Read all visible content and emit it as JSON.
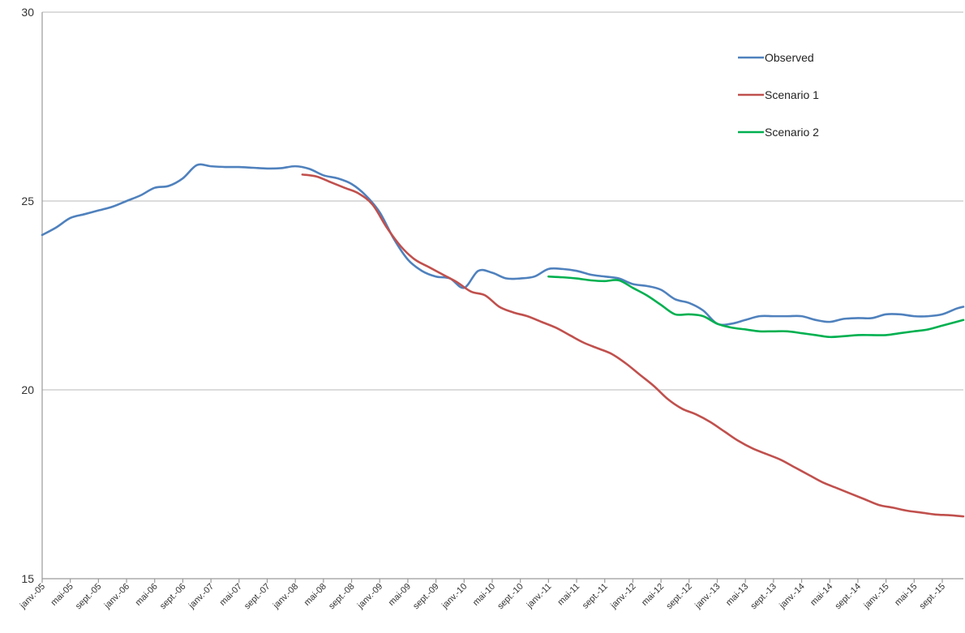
{
  "chart_data": {
    "type": "line",
    "title": "",
    "xlabel": "",
    "ylabel": "",
    "ylim": [
      15,
      30
    ],
    "yticks": [
      15,
      20,
      25,
      30
    ],
    "grid": "horizontal",
    "legend_position": "top-right",
    "x_labels": [
      "janv.-05",
      "mai-05",
      "sept.-05",
      "janv.-06",
      "mai-06",
      "sept.-06",
      "janv.-07",
      "mai-07",
      "sept.-07",
      "janv.-08",
      "mai-08",
      "sept.-08",
      "janv.-09",
      "mai-09",
      "sept.-09",
      "janv.-10",
      "mai-10",
      "sept.-10",
      "janv.-11",
      "mai-11",
      "sept.-11",
      "janv.-12",
      "mai-12",
      "sept.-12",
      "janv.-13",
      "mai-13",
      "sept.-13",
      "janv.-14",
      "mai-14",
      "sept.-14",
      "janv.-15",
      "mai-15",
      "sept.-15"
    ],
    "x_start_label": "janv.-05",
    "x_end_label": "déc.-15",
    "series": [
      {
        "name": "Observed",
        "color": "#4f81bd",
        "points": [
          [
            "janv.-05",
            24.1
          ],
          [
            "mars-05",
            24.3
          ],
          [
            "mai-05",
            24.55
          ],
          [
            "juil.-05",
            24.65
          ],
          [
            "sept.-05",
            24.75
          ],
          [
            "nov.-05",
            24.85
          ],
          [
            "janv.-06",
            25.0
          ],
          [
            "mars-06",
            25.15
          ],
          [
            "mai-06",
            25.35
          ],
          [
            "juil.-06",
            25.4
          ],
          [
            "sept.-06",
            25.6
          ],
          [
            "nov.-06",
            25.95
          ],
          [
            "janv.-07",
            25.92
          ],
          [
            "mars-07",
            25.9
          ],
          [
            "mai-07",
            25.9
          ],
          [
            "juil.-07",
            25.88
          ],
          [
            "sept.-07",
            25.86
          ],
          [
            "nov.-07",
            25.87
          ],
          [
            "janv.-08",
            25.92
          ],
          [
            "mars-08",
            25.85
          ],
          [
            "mai-08",
            25.68
          ],
          [
            "juil.-08",
            25.6
          ],
          [
            "sept.-08",
            25.45
          ],
          [
            "nov.-08",
            25.15
          ],
          [
            "janv.-09",
            24.7
          ],
          [
            "mars-09",
            24.0
          ],
          [
            "mai-09",
            23.45
          ],
          [
            "juil.-09",
            23.15
          ],
          [
            "sept.-09",
            23.0
          ],
          [
            "nov.-09",
            22.95
          ],
          [
            "janv.-10",
            22.7
          ],
          [
            "mars-10",
            23.15
          ],
          [
            "mai-10",
            23.1
          ],
          [
            "juil.-10",
            22.95
          ],
          [
            "sept.-10",
            22.95
          ],
          [
            "nov.-10",
            23.0
          ],
          [
            "janv.-11",
            23.2
          ],
          [
            "mars-11",
            23.2
          ],
          [
            "mai-11",
            23.15
          ],
          [
            "juil.-11",
            23.05
          ],
          [
            "sept.-11",
            23.0
          ],
          [
            "nov.-11",
            22.95
          ],
          [
            "janv.-12",
            22.8
          ],
          [
            "mars-12",
            22.75
          ],
          [
            "mai-12",
            22.65
          ],
          [
            "juil.-12",
            22.4
          ],
          [
            "sept.-12",
            22.3
          ],
          [
            "nov.-12",
            22.1
          ],
          [
            "janv.-13",
            21.75
          ],
          [
            "mars-13",
            21.75
          ],
          [
            "mai-13",
            21.85
          ],
          [
            "juil.-13",
            21.95
          ],
          [
            "sept.-13",
            21.95
          ],
          [
            "nov.-13",
            21.95
          ],
          [
            "janv.-14",
            21.95
          ],
          [
            "mars-14",
            21.85
          ],
          [
            "mai-14",
            21.8
          ],
          [
            "juil.-14",
            21.88
          ],
          [
            "sept.-14",
            21.9
          ],
          [
            "nov.-14",
            21.9
          ],
          [
            "janv.-15",
            22.0
          ],
          [
            "mars-15",
            22.0
          ],
          [
            "mai-15",
            21.95
          ],
          [
            "juil.-15",
            21.95
          ],
          [
            "sept.-15",
            22.0
          ],
          [
            "nov.-15",
            22.15
          ],
          [
            "déc.-15",
            22.2
          ]
        ]
      },
      {
        "name": "Scenario 1",
        "color": "#c0504d",
        "points": [
          [
            "févr.-08",
            25.7
          ],
          [
            "avr.-08",
            25.65
          ],
          [
            "juin-08",
            25.5
          ],
          [
            "août-08",
            25.35
          ],
          [
            "oct.-08",
            25.2
          ],
          [
            "déc.-08",
            24.9
          ],
          [
            "févr.-09",
            24.3
          ],
          [
            "avr.-09",
            23.8
          ],
          [
            "juin-09",
            23.45
          ],
          [
            "août-09",
            23.25
          ],
          [
            "oct.-09",
            23.05
          ],
          [
            "déc.-09",
            22.85
          ],
          [
            "févr.-10",
            22.6
          ],
          [
            "avr.-10",
            22.5
          ],
          [
            "juin-10",
            22.2
          ],
          [
            "août-10",
            22.05
          ],
          [
            "oct.-10",
            21.95
          ],
          [
            "déc.-10",
            21.8
          ],
          [
            "févr.-11",
            21.65
          ],
          [
            "avr.-11",
            21.45
          ],
          [
            "juin-11",
            21.25
          ],
          [
            "août-11",
            21.1
          ],
          [
            "oct.-11",
            20.95
          ],
          [
            "déc.-11",
            20.7
          ],
          [
            "févr.-12",
            20.4
          ],
          [
            "avr.-12",
            20.1
          ],
          [
            "juin-12",
            19.75
          ],
          [
            "août-12",
            19.5
          ],
          [
            "oct.-12",
            19.35
          ],
          [
            "déc.-12",
            19.15
          ],
          [
            "févr.-13",
            18.9
          ],
          [
            "avr.-13",
            18.65
          ],
          [
            "juin-13",
            18.45
          ],
          [
            "août-13",
            18.3
          ],
          [
            "oct.-13",
            18.15
          ],
          [
            "déc.-13",
            17.95
          ],
          [
            "févr.-14",
            17.75
          ],
          [
            "avr.-14",
            17.55
          ],
          [
            "juin-14",
            17.4
          ],
          [
            "août-14",
            17.25
          ],
          [
            "oct.-14",
            17.1
          ],
          [
            "déc.-14",
            16.95
          ],
          [
            "févr.-15",
            16.88
          ],
          [
            "avr.-15",
            16.8
          ],
          [
            "juin-15",
            16.75
          ],
          [
            "août-15",
            16.7
          ],
          [
            "oct.-15",
            16.68
          ],
          [
            "déc.-15",
            16.65
          ]
        ]
      },
      {
        "name": "Scenario 2",
        "color": "#00b050",
        "points": [
          [
            "janv.-11",
            23.0
          ],
          [
            "mars-11",
            22.98
          ],
          [
            "mai-11",
            22.95
          ],
          [
            "juil.-11",
            22.9
          ],
          [
            "sept.-11",
            22.88
          ],
          [
            "nov.-11",
            22.9
          ],
          [
            "janv.-12",
            22.7
          ],
          [
            "mars-12",
            22.5
          ],
          [
            "mai-12",
            22.25
          ],
          [
            "juil.-12",
            22.0
          ],
          [
            "sept.-12",
            22.0
          ],
          [
            "nov.-12",
            21.95
          ],
          [
            "janv.-13",
            21.75
          ],
          [
            "mars-13",
            21.65
          ],
          [
            "mai-13",
            21.6
          ],
          [
            "juil.-13",
            21.55
          ],
          [
            "sept.-13",
            21.55
          ],
          [
            "nov.-13",
            21.55
          ],
          [
            "janv.-14",
            21.5
          ],
          [
            "mars-14",
            21.45
          ],
          [
            "mai-14",
            21.4
          ],
          [
            "juil.-14",
            21.42
          ],
          [
            "sept.-14",
            21.45
          ],
          [
            "nov.-14",
            21.45
          ],
          [
            "janv.-15",
            21.45
          ],
          [
            "mars-15",
            21.5
          ],
          [
            "mai-15",
            21.55
          ],
          [
            "juil.-15",
            21.6
          ],
          [
            "sept.-15",
            21.7
          ],
          [
            "nov.-15",
            21.8
          ],
          [
            "déc.-15",
            21.85
          ]
        ]
      }
    ]
  }
}
